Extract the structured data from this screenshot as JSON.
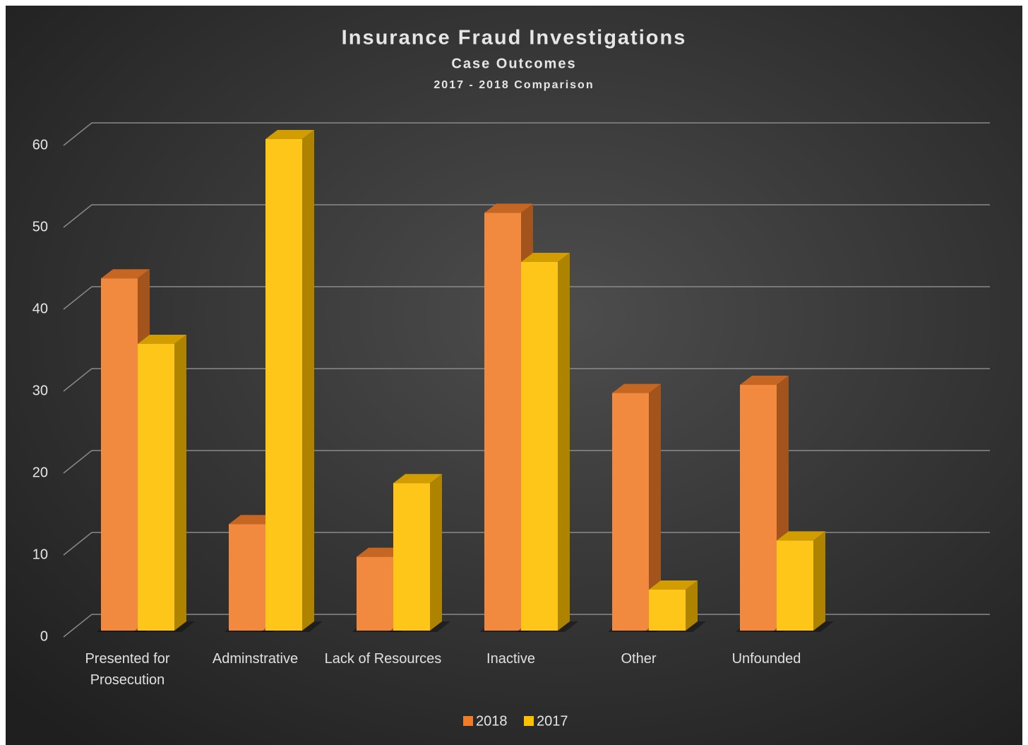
{
  "chart_data": {
    "type": "bar3d",
    "title": "Insurance Fraud Investigations",
    "subtitle": "Case Outcomes",
    "subsubtitle": "2017 - 2018 Comparison",
    "categories": [
      "Presented for Prosecution",
      "Adminstrative",
      "Lack of Resources",
      "Inactive",
      "Other",
      "Unfounded"
    ],
    "series": [
      {
        "name": "2018",
        "color": "#f07c2a",
        "values": [
          43,
          13,
          9,
          51,
          29,
          30
        ]
      },
      {
        "name": "2017",
        "color": "#ffc000",
        "values": [
          35,
          60,
          18,
          45,
          5,
          11
        ]
      }
    ],
    "ylim": [
      0,
      60
    ],
    "yticks": [
      0,
      10,
      20,
      30,
      40,
      50,
      60
    ],
    "grid": true,
    "legend": "bottom"
  }
}
